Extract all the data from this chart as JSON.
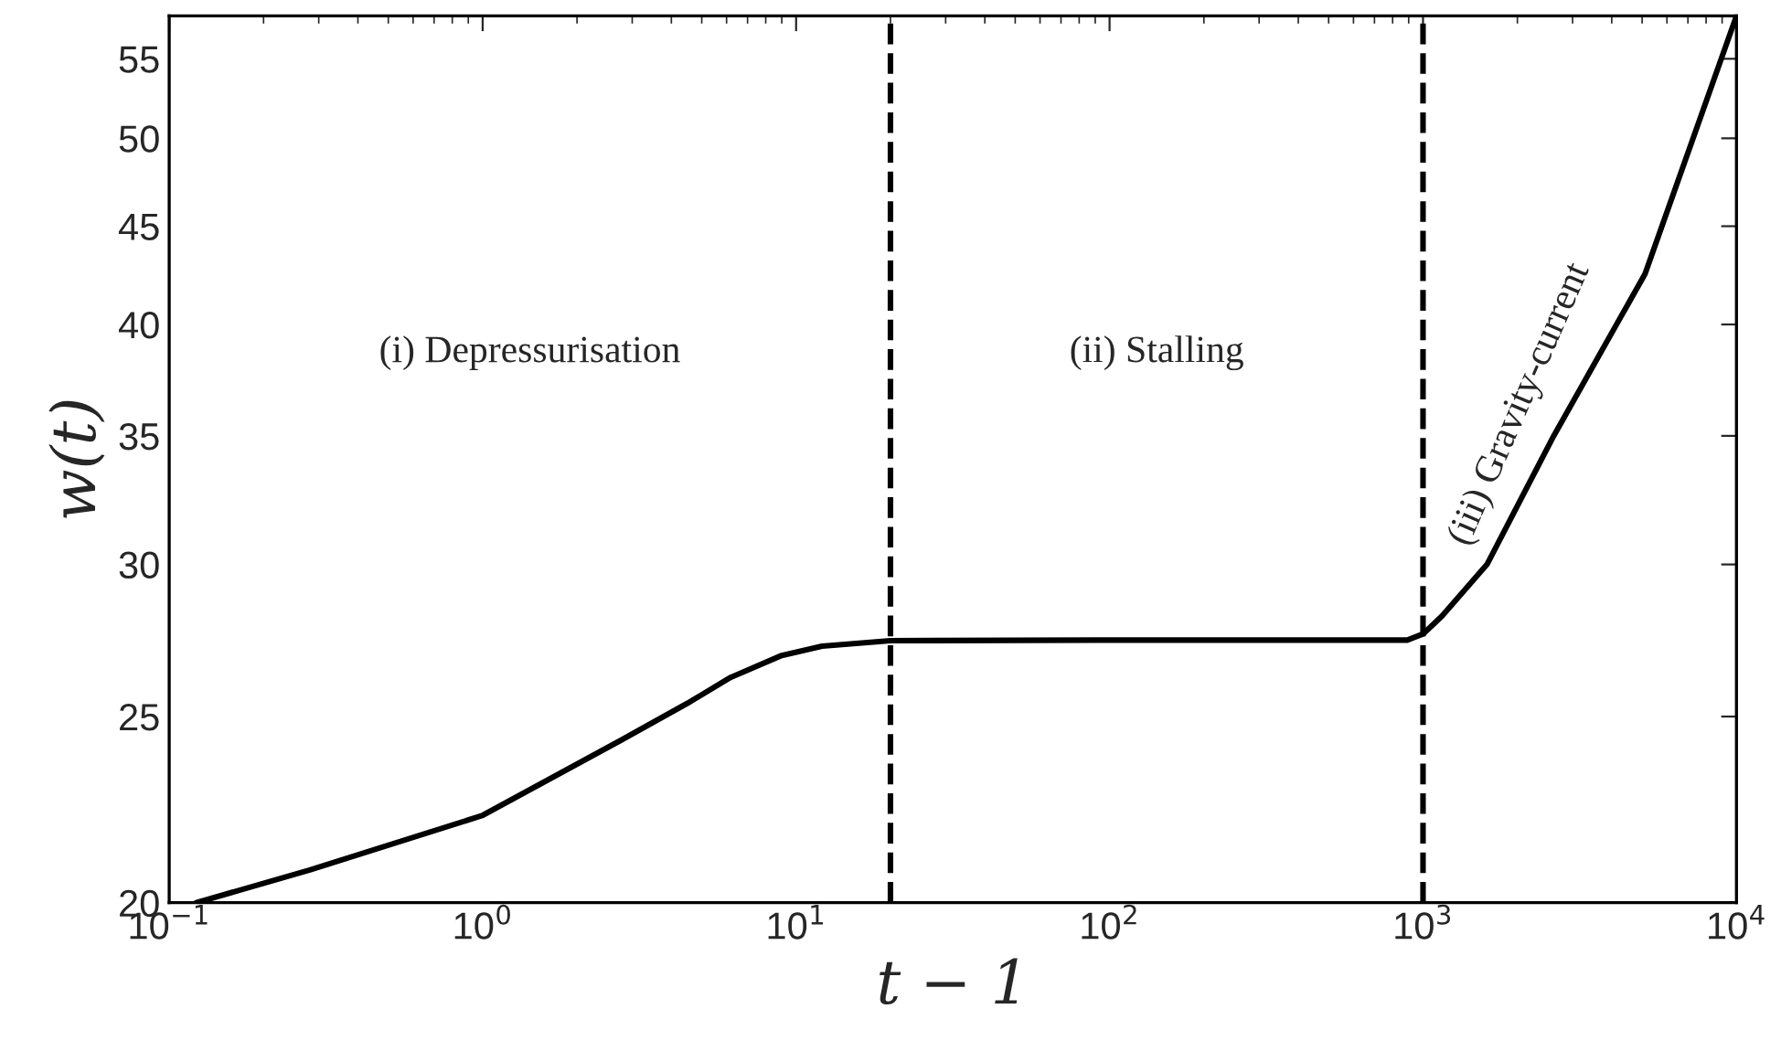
{
  "chart_data": {
    "type": "line",
    "xlabel": "t − 1",
    "ylabel": "w(t)",
    "log": "xy",
    "grid": false,
    "marker": "none",
    "line_style": "solid",
    "x": [
      0.122,
      0.281,
      0.995,
      2.76,
      4.5,
      6.18,
      9,
      12.1,
      20,
      90.8,
      891,
      1000,
      1150,
      1600,
      2612,
      5108,
      10000
    ],
    "series": [
      {
        "color": "#000000",
        "values": [
          20,
          20.8,
          22.2,
          24.3,
          25.4,
          26.2,
          26.9,
          27.2,
          27.38,
          27.4,
          27.4,
          27.6,
          28.2,
          30,
          35,
          42.5,
          57.9
        ]
      }
    ],
    "xlim": [
      0.1,
      10000
    ],
    "ylim": [
      20,
      57.9
    ],
    "xticks": [
      {
        "value": 0.1,
        "label": "10$^{−1}$"
      },
      {
        "value": 1,
        "label": "10$^{0}$"
      },
      {
        "value": 10,
        "label": "10$^{1}$"
      },
      {
        "value": 100,
        "label": "10$^{2}$"
      },
      {
        "value": 1000,
        "label": "10$^{3}$"
      },
      {
        "value": 10000,
        "label": "10$^{4}$"
      }
    ],
    "yticks": [
      20,
      25,
      30,
      35,
      40,
      45,
      50,
      55
    ],
    "ref_lines": [
      {
        "axis": "x",
        "value": 20,
        "color": "#000000",
        "line_style": "dashed"
      },
      {
        "axis": "x",
        "value": 1000,
        "color": "#000000",
        "line_style": "dashed"
      }
    ],
    "annotations": [
      "(i) Depressurisation",
      "(ii) Stalling",
      "(iii) Gravity-current"
    ]
  }
}
